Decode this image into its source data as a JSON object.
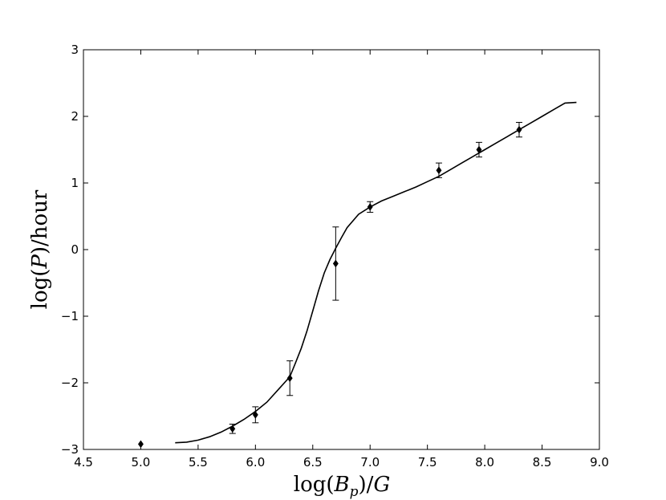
{
  "chart_data": {
    "type": "scatter",
    "title": "",
    "xlabel": {
      "prefix": "log(",
      "main": "B",
      "sub": "p",
      "suffix": ")/",
      "unit": "G"
    },
    "ylabel": {
      "prefix": "log(",
      "main": "P",
      "suffix": ")/hour"
    },
    "xlim": [
      4.5,
      9.0
    ],
    "ylim": [
      -3,
      3
    ],
    "xticks": [
      4.5,
      5.0,
      5.5,
      6.0,
      6.5,
      7.0,
      7.5,
      8.0,
      8.5,
      9.0
    ],
    "xtick_labels": [
      "4.5",
      "5.0",
      "5.5",
      "6.0",
      "6.5",
      "7.0",
      "7.5",
      "8.0",
      "8.5",
      "9.0"
    ],
    "yticks": [
      -3,
      -2,
      -1,
      0,
      1,
      2,
      3
    ],
    "ytick_labels": [
      "−3",
      "−2",
      "−1",
      "0",
      "1",
      "2",
      "3"
    ],
    "grid": false,
    "colors": {
      "line": "#000000",
      "marker": "#000000"
    },
    "series": [
      {
        "kind": "points",
        "marker": "diamond",
        "x": [
          5.0,
          5.8,
          6.0,
          6.3,
          6.7,
          7.0,
          7.6,
          7.95,
          8.3
        ],
        "y": [
          -2.92,
          -2.69,
          -2.48,
          -1.93,
          -0.21,
          0.64,
          1.19,
          1.5,
          1.8
        ],
        "err": [
          0.0,
          0.07,
          0.12,
          0.26,
          0.55,
          0.08,
          0.11,
          0.11,
          0.11
        ]
      },
      {
        "kind": "line",
        "x": [
          5.3,
          5.4,
          5.5,
          5.6,
          5.7,
          5.8,
          5.9,
          6.0,
          6.1,
          6.2,
          6.3,
          6.35,
          6.4,
          6.45,
          6.5,
          6.55,
          6.6,
          6.65,
          6.7,
          6.75,
          6.8,
          6.9,
          7.0,
          7.1,
          7.2,
          7.3,
          7.4,
          7.5,
          7.6,
          7.7,
          7.8,
          7.9,
          8.0,
          8.1,
          8.2,
          8.3,
          8.4,
          8.5,
          8.6,
          8.7,
          8.8
        ],
        "y": [
          -2.9,
          -2.89,
          -2.86,
          -2.81,
          -2.74,
          -2.65,
          -2.55,
          -2.43,
          -2.29,
          -2.1,
          -1.91,
          -1.7,
          -1.48,
          -1.22,
          -0.92,
          -0.62,
          -0.35,
          -0.15,
          0.02,
          0.18,
          0.33,
          0.53,
          0.64,
          0.73,
          0.8,
          0.87,
          0.94,
          1.02,
          1.1,
          1.2,
          1.3,
          1.4,
          1.5,
          1.6,
          1.7,
          1.8,
          1.9,
          2.0,
          2.1,
          2.2,
          2.21
        ]
      }
    ]
  }
}
